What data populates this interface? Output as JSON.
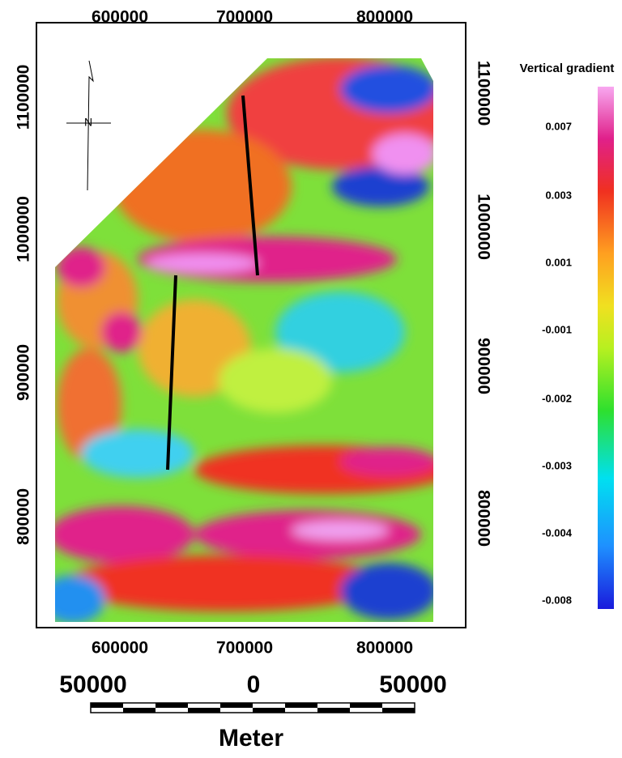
{
  "map": {
    "top_ticks": [
      "600000",
      "700000",
      "800000"
    ],
    "bottom_ticks": [
      "600000",
      "700000",
      "800000"
    ],
    "left_ticks": [
      "1100000",
      "1000000",
      "900000",
      "800000"
    ],
    "right_ticks": [
      "1100000",
      "1000000",
      "900000",
      "800000"
    ],
    "north_label": "N"
  },
  "legend": {
    "title": "Vertical gradient",
    "labels": [
      "0.007",
      "0.003",
      "0.001",
      "-0.001",
      "-0.002",
      "-0.003",
      "-0.004",
      "-0.008"
    ]
  },
  "scale_bar": {
    "labels": [
      "50000",
      "0",
      "50000"
    ],
    "unit": "Meter"
  }
}
